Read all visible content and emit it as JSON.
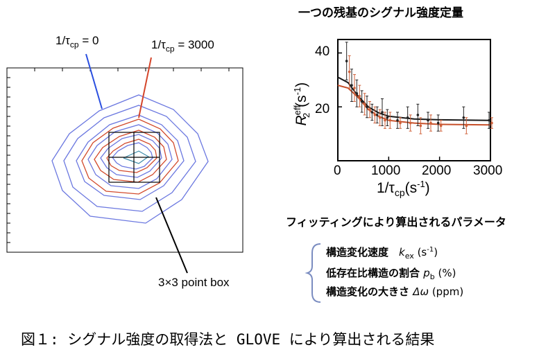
{
  "title_right": "一つの残基のシグナル強度定量",
  "contour": {
    "label_tcp0": {
      "pre": "1/τ",
      "sub": "cp",
      "post": " = 0"
    },
    "label_tcp3000": {
      "pre": "1/τ",
      "sub": "cp",
      "post": " = 3000"
    },
    "box_label": "3×3 point box",
    "colors": {
      "blue": "#5a6be0",
      "red": "#d4452a",
      "box": "#000000"
    }
  },
  "chart_data": {
    "type": "scatter",
    "xlabel": {
      "pre": "1/τ",
      "sub": "cp",
      "post": "(s",
      "sup": "-1",
      "end": ")"
    },
    "ylabel": {
      "R": "R",
      "sup": "eff",
      "sub": "2",
      "post": "(s",
      "sup2": "-1",
      "end": ")"
    },
    "xlim": [
      0,
      3000
    ],
    "ylim": [
      0,
      45
    ],
    "xticks": [
      "0",
      "1000",
      "2000",
      "3000"
    ],
    "yticks": [
      "20",
      "40"
    ],
    "series": [
      {
        "color": "#222222",
        "x": [
          200,
          300,
          400,
          500,
          600,
          700,
          800,
          900,
          1000,
          1200,
          1400,
          1600,
          1800,
          2000,
          2500,
          3000
        ],
        "y": [
          37,
          28,
          25,
          22,
          20,
          18,
          17,
          18,
          16,
          15,
          16,
          17,
          15,
          14,
          16,
          15
        ],
        "err": [
          7,
          6,
          5,
          4,
          4,
          3,
          3,
          5,
          3,
          3,
          4,
          4,
          3,
          3,
          4,
          3
        ],
        "fit": [
          [
            0,
            31
          ],
          [
            200,
            29
          ],
          [
            400,
            24
          ],
          [
            600,
            20
          ],
          [
            800,
            17.8
          ],
          [
            1000,
            16.5
          ],
          [
            1500,
            15.5
          ],
          [
            2000,
            15.2
          ],
          [
            3000,
            15
          ]
        ]
      },
      {
        "color": "#d0613a",
        "x": [
          200,
          300,
          400,
          500,
          600,
          700,
          800,
          900,
          1000,
          1200,
          1400,
          1600,
          1800,
          2000,
          2500,
          3000
        ],
        "y": [
          33,
          27,
          24,
          21,
          19,
          17,
          16,
          15,
          15,
          14,
          14,
          13,
          14,
          13,
          13,
          14
        ],
        "err": [
          6,
          5,
          4,
          4,
          3,
          3,
          3,
          3,
          3,
          2,
          3,
          3,
          3,
          2,
          3,
          2
        ],
        "fit": [
          [
            0,
            28
          ],
          [
            200,
            27
          ],
          [
            400,
            23.5
          ],
          [
            600,
            19
          ],
          [
            800,
            16.5
          ],
          [
            1000,
            15
          ],
          [
            1500,
            14
          ],
          [
            2000,
            13.5
          ],
          [
            3000,
            13.3
          ]
        ]
      }
    ],
    "fit_colors": {
      "dark": "#1a1a1a",
      "red": "#c7502a"
    }
  },
  "fit_title": "フィッティングにより算出されるパラメータ",
  "params": [
    {
      "text": "構造変化速度　",
      "sym": "k",
      "sub": "ex",
      "unit": " (s",
      "sup": "-1",
      "end": ")"
    },
    {
      "text": "低存在比構造の割合 ",
      "sym": "p",
      "sub": "b",
      "unit": " (%)"
    },
    {
      "text": "構造変化の大きさ ",
      "sym": "Δω",
      "unit": " (ppm)"
    }
  ],
  "caption": "図１: シグナル強度の取得法と GLOVE により算出される結果"
}
